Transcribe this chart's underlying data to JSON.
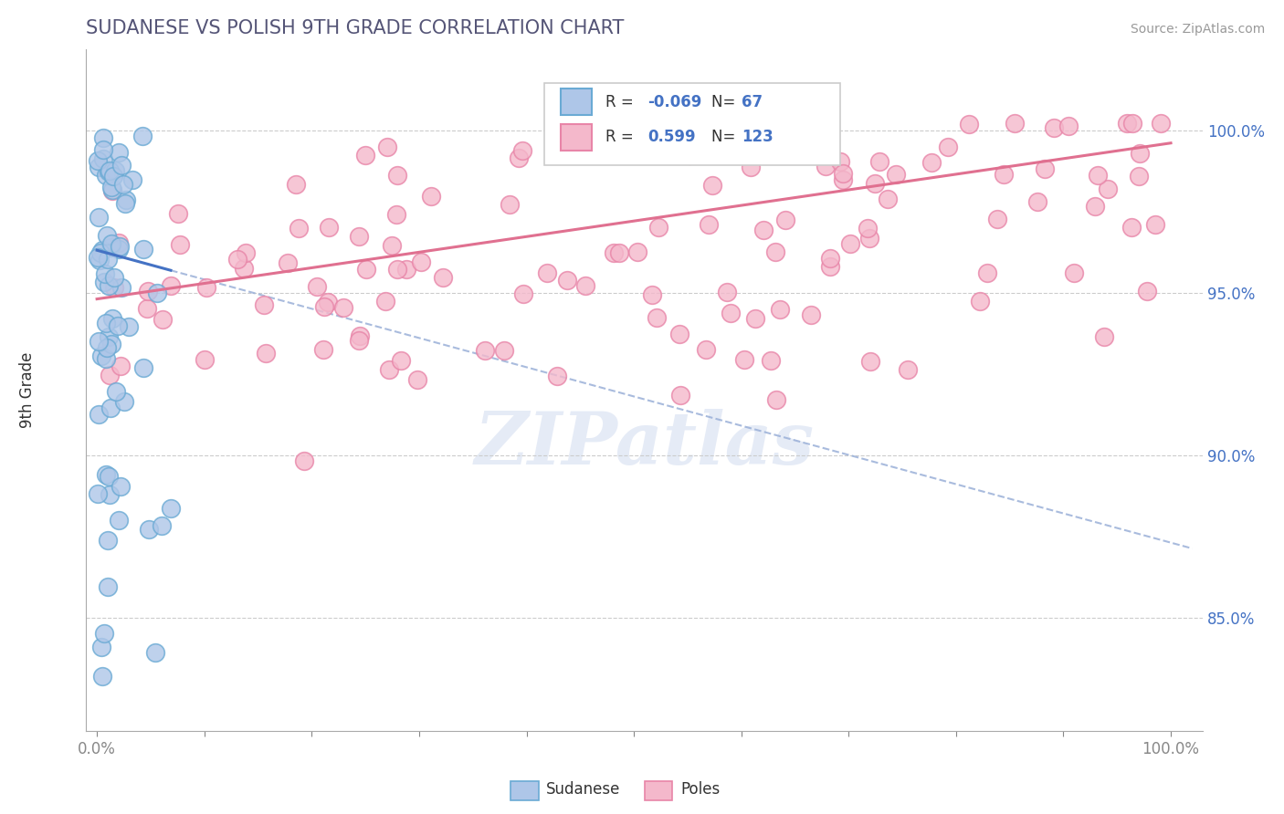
{
  "title": "SUDANESE VS POLISH 9TH GRADE CORRELATION CHART",
  "source": "Source: ZipAtlas.com",
  "ylabel": "9th Grade",
  "sudanese_color": "#aec6e8",
  "poles_color": "#f4b8cb",
  "sudanese_edge": "#6aaad4",
  "poles_edge": "#e885a8",
  "trend_sudanese_color": "#4472c4",
  "trend_poles_color": "#e07090",
  "trend_dashed_color": "#9ab0d8",
  "legend_R_sudanese": "-0.069",
  "legend_N_sudanese": "67",
  "legend_R_poles": "0.599",
  "legend_N_poles": "123",
  "watermark": "ZIPatlas",
  "ytick_vals": [
    0.85,
    0.9,
    0.95,
    1.0
  ],
  "ytick_labels": [
    "85.0%",
    "90.0%",
    "95.0%",
    "100.0%"
  ],
  "xlim": [
    -0.01,
    1.03
  ],
  "ylim": [
    0.815,
    1.025
  ]
}
